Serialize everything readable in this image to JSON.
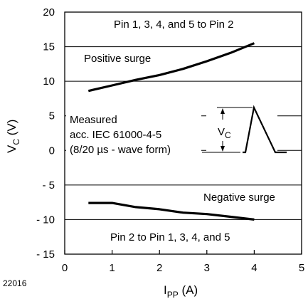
{
  "figure_id": "22016",
  "chart_data": {
    "type": "line",
    "xlabel_main": "I",
    "xlabel_sub": "PP",
    "xlabel_unit": " (A)",
    "ylabel_main": "V",
    "ylabel_sub": "C",
    "ylabel_unit": " (V)",
    "xlim": [
      0,
      5
    ],
    "ylim": [
      -15,
      20
    ],
    "xticks": [
      0,
      1,
      2,
      3,
      4,
      5
    ],
    "xtick_labels": [
      "0",
      "1",
      "2",
      "3",
      "4",
      "5"
    ],
    "yticks": [
      20,
      15,
      10,
      5,
      0,
      -5,
      -10,
      -15
    ],
    "ytick_labels": [
      "20",
      "15",
      "10",
      "5",
      "0",
      "- 5",
      "- 10",
      "- 15"
    ],
    "grid": "horizontal",
    "series": [
      {
        "name": "Positive surge",
        "x": [
          0.5,
          1.0,
          1.5,
          2.0,
          2.5,
          3.0,
          3.5,
          4.0
        ],
        "y": [
          8.6,
          9.4,
          10.2,
          10.9,
          11.8,
          12.9,
          14.1,
          15.5
        ]
      },
      {
        "name": "Negative surge",
        "x": [
          0.5,
          1.0,
          1.5,
          2.0,
          2.5,
          3.0,
          3.5,
          4.0
        ],
        "y": [
          -7.6,
          -7.6,
          -8.2,
          -8.5,
          -9.0,
          -9.2,
          -9.6,
          -10.0
        ]
      }
    ],
    "annotations": {
      "top_note": "Pin 1, 3, 4, and 5 to Pin 2",
      "bottom_note": "Pin 2 to Pin 1, 3, 4, and 5",
      "measured_lines": [
        "Measured",
        "acc. IEC 61000-4-5",
        "(8/20 µs - wave form)"
      ],
      "inset_label_main": "V",
      "inset_label_sub": "C"
    }
  }
}
